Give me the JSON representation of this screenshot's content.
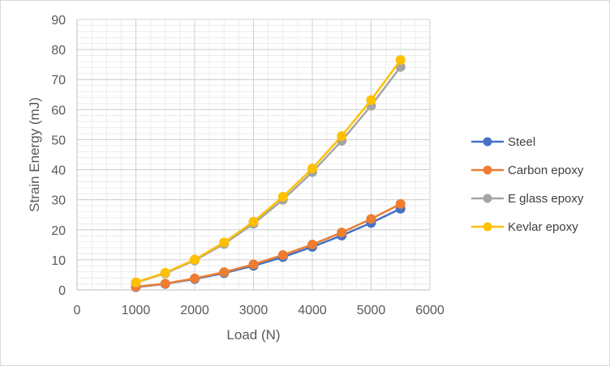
{
  "chart_data": {
    "type": "line",
    "xlabel": "Load (N)",
    "ylabel": "Strain Energy (mJ)",
    "xlim": [
      0,
      6000
    ],
    "ylim": [
      0,
      90
    ],
    "x_ticks": [
      0,
      1000,
      2000,
      3000,
      4000,
      5000,
      6000
    ],
    "y_ticks": [
      0,
      10,
      20,
      30,
      40,
      50,
      60,
      70,
      80,
      90
    ],
    "x_minor_step": 250,
    "y_minor_step": 2,
    "grid": true,
    "legend_position": "right",
    "series": [
      {
        "name": "Steel",
        "color": "#4472C4",
        "x": [
          1000,
          1500,
          2000,
          2500,
          3000,
          3500,
          4000,
          4500,
          5000,
          5500
        ],
        "y": [
          0.9,
          2.0,
          3.6,
          5.6,
          8.0,
          10.9,
          14.3,
          18.1,
          22.3,
          27.0
        ]
      },
      {
        "name": "Carbon epoxy",
        "color": "#ED7D31",
        "x": [
          1000,
          1500,
          2000,
          2500,
          3000,
          3500,
          4000,
          4500,
          5000,
          5500
        ],
        "y": [
          1.0,
          2.1,
          3.8,
          5.9,
          8.5,
          11.6,
          15.1,
          19.1,
          23.6,
          28.6
        ]
      },
      {
        "name": "E glass epoxy",
        "color": "#A5A5A5",
        "x": [
          1000,
          1500,
          2000,
          2500,
          3000,
          3500,
          4000,
          4500,
          5000,
          5500
        ],
        "y": [
          2.4,
          5.5,
          9.8,
          15.3,
          22.0,
          30.0,
          39.2,
          49.6,
          61.3,
          74.2
        ]
      },
      {
        "name": "Kevlar epoxy",
        "color": "#FFC000",
        "x": [
          1000,
          1500,
          2000,
          2500,
          3000,
          3500,
          4000,
          4500,
          5000,
          5500
        ],
        "y": [
          2.5,
          5.7,
          10.1,
          15.8,
          22.7,
          31.0,
          40.4,
          51.2,
          63.2,
          76.5
        ]
      }
    ]
  }
}
